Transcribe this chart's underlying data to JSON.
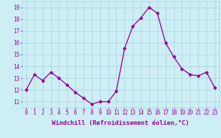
{
  "x": [
    0,
    1,
    2,
    3,
    4,
    5,
    6,
    7,
    8,
    9,
    10,
    11,
    12,
    13,
    14,
    15,
    16,
    17,
    18,
    19,
    20,
    21,
    22,
    23
  ],
  "y": [
    12.0,
    13.3,
    12.8,
    13.5,
    13.0,
    12.4,
    11.8,
    11.3,
    10.8,
    11.0,
    11.0,
    11.9,
    15.5,
    17.4,
    18.1,
    19.0,
    18.5,
    16.0,
    14.8,
    13.8,
    13.3,
    13.2,
    13.5,
    12.2
  ],
  "line_color": "#990099",
  "marker": "D",
  "marker_size": 2.0,
  "line_width": 1.0,
  "xlabel": "Windchill (Refroidissement éolien,°C)",
  "xlabel_fontsize": 6.5,
  "xlabel_color": "#990099",
  "ylabel_ticks": [
    11,
    12,
    13,
    14,
    15,
    16,
    17,
    18,
    19
  ],
  "xlim": [
    -0.5,
    23.5
  ],
  "ylim": [
    10.5,
    19.5
  ],
  "background_color": "#cdeef5",
  "grid_color": "#aad4e0",
  "tick_fontsize": 5.5,
  "tick_color": "#990099"
}
